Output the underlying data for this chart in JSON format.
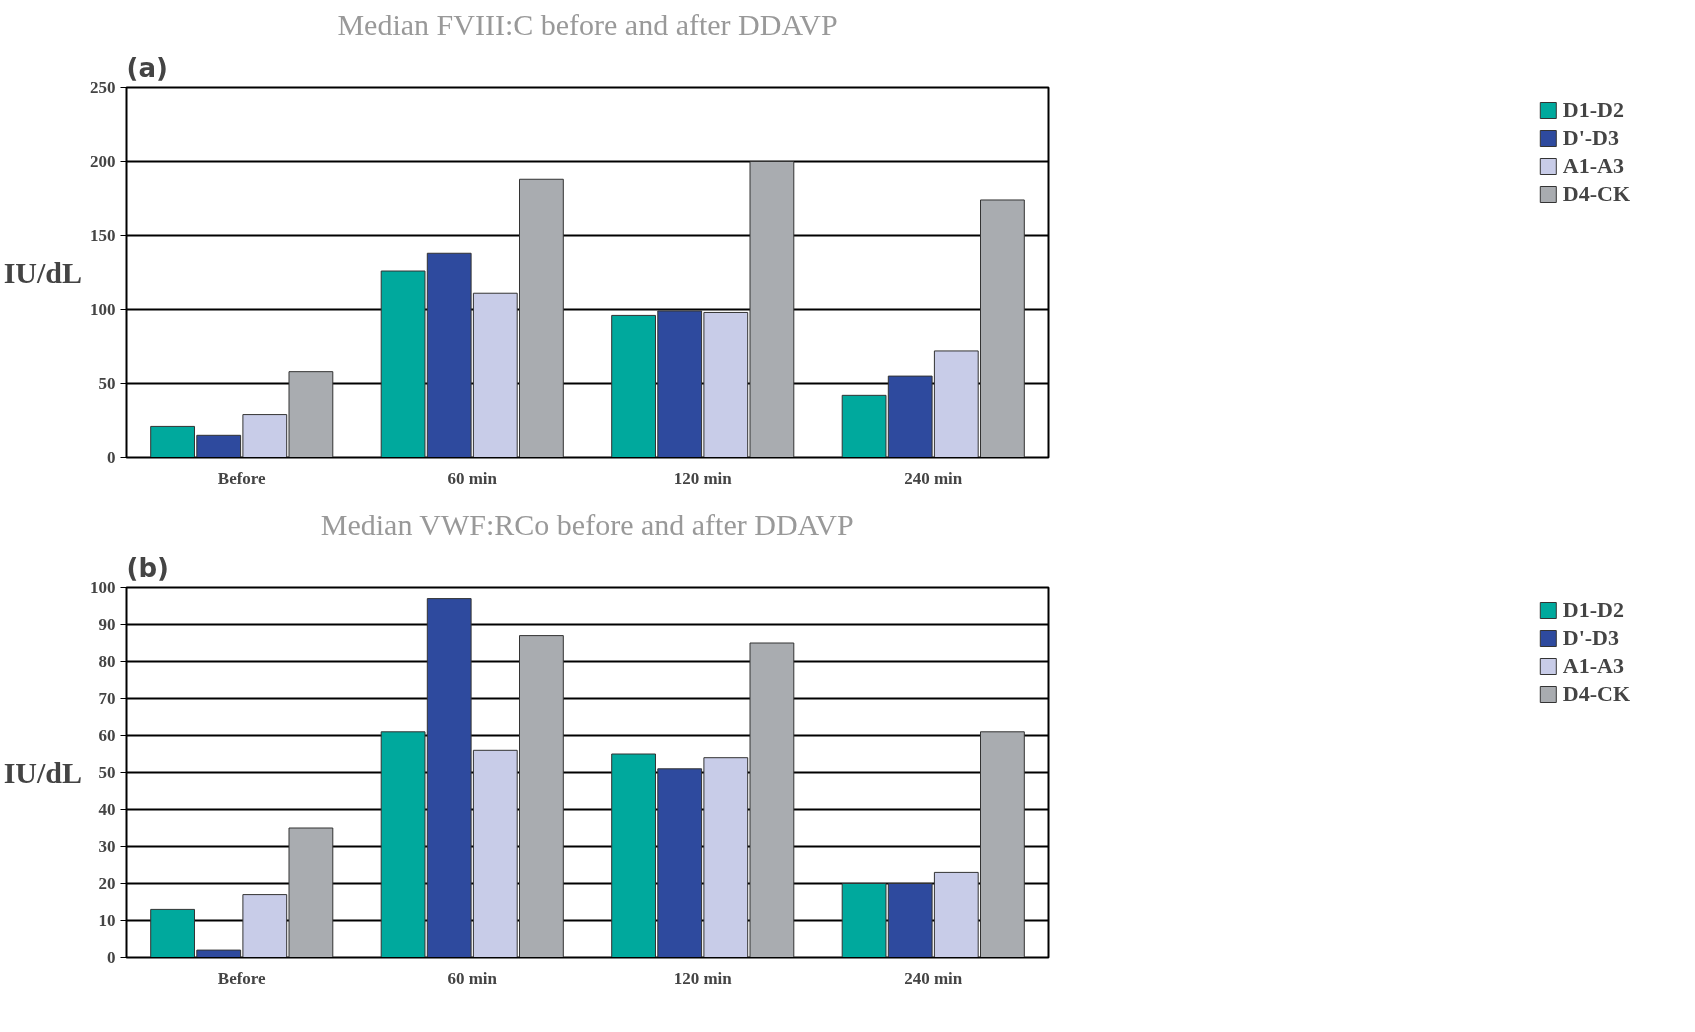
{
  "chart_data": [
    {
      "type": "bar",
      "title": "Median FVIII:C before and after DDAVP",
      "ylabel": "IU/dL",
      "annotations": [
        "(a)"
      ],
      "categories": [
        "Before",
        "60 min",
        "120 min",
        "240 min"
      ],
      "series": [
        {
          "name": "D1-D2",
          "color": "#00a99d",
          "values": [
            21,
            126,
            96,
            42
          ]
        },
        {
          "name": "D'-D3",
          "color": "#2e4a9e",
          "values": [
            15,
            138,
            99,
            55
          ]
        },
        {
          "name": "A1-A3",
          "color": "#c8cce8",
          "values": [
            29,
            111,
            98,
            72
          ]
        },
        {
          "name": "D4-CK",
          "color": "#a9acb0",
          "values": [
            58,
            188,
            200,
            174
          ]
        }
      ],
      "ylim": [
        0,
        250
      ],
      "yticks": [
        0,
        50,
        100,
        150,
        200,
        250
      ],
      "grid": "y",
      "legend": "right"
    },
    {
      "type": "bar",
      "title": "Median VWF:RCo before and after DDAVP",
      "ylabel": "IU/dL",
      "annotations": [
        "(b)"
      ],
      "categories": [
        "Before",
        "60 min",
        "120 min",
        "240 min"
      ],
      "series": [
        {
          "name": "D1-D2",
          "color": "#00a99d",
          "values": [
            13,
            61,
            55,
            20
          ]
        },
        {
          "name": "D'-D3",
          "color": "#2e4a9e",
          "values": [
            2,
            97,
            51,
            20
          ]
        },
        {
          "name": "A1-A3",
          "color": "#c8cce8",
          "values": [
            17,
            56,
            54,
            23
          ]
        },
        {
          "name": "D4-CK",
          "color": "#a9acb0",
          "values": [
            35,
            87,
            85,
            61
          ]
        }
      ],
      "ylim": [
        0,
        100
      ],
      "yticks": [
        0,
        10,
        20,
        30,
        40,
        50,
        60,
        70,
        80,
        90,
        100
      ],
      "grid": "y",
      "legend": "right"
    }
  ]
}
